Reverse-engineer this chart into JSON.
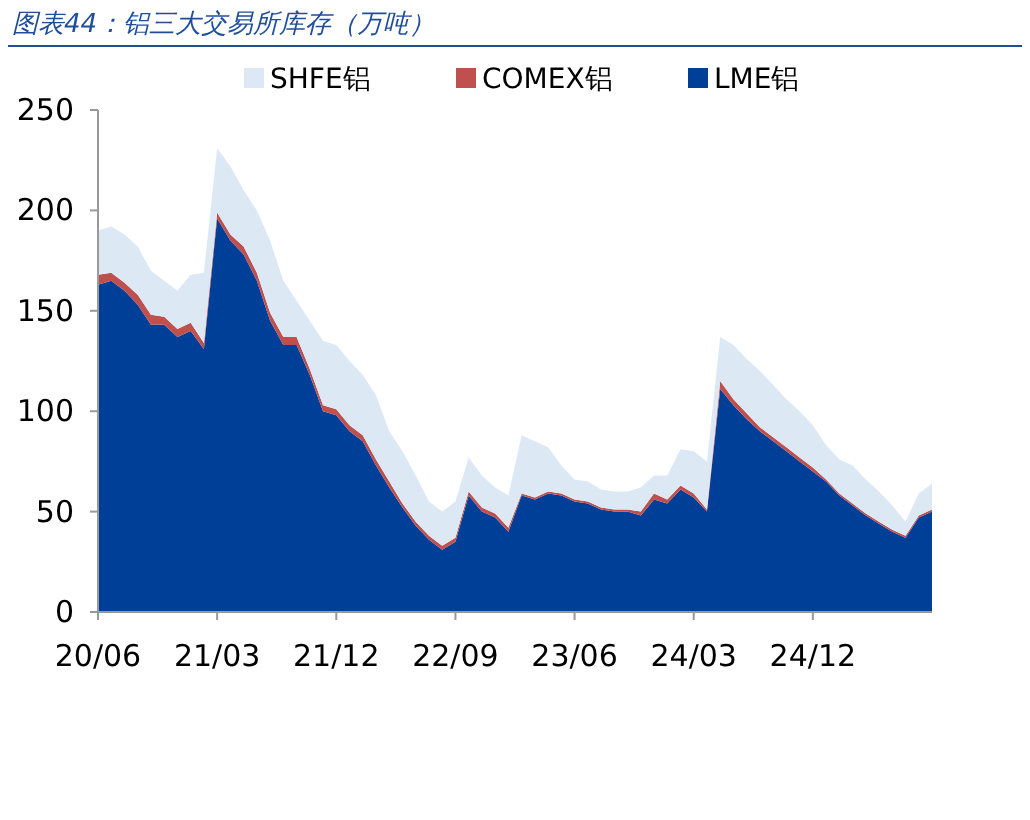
{
  "chart_data": {
    "type": "area",
    "stacked": true,
    "title": "图表44：铝三大交易所库存（万吨）",
    "legend": "top",
    "categories": [
      "20/06",
      null,
      null,
      null,
      null,
      null,
      null,
      null,
      null,
      "21/03",
      null,
      null,
      null,
      null,
      null,
      null,
      null,
      null,
      "21/12",
      null,
      null,
      null,
      null,
      null,
      null,
      null,
      null,
      "22/09",
      null,
      null,
      null,
      null,
      null,
      null,
      null,
      null,
      "23/06",
      null,
      null,
      null,
      null,
      null,
      null,
      null,
      null,
      "24/03",
      null,
      null,
      null,
      null,
      null,
      null,
      null,
      null,
      "24/12",
      null,
      null,
      null,
      null,
      null,
      null,
      null,
      null,
      null
    ],
    "series": [
      {
        "name": "LME铝",
        "color": "#003f98",
        "values": [
          163,
          165,
          160,
          153,
          143,
          143,
          137,
          140,
          131,
          196,
          185,
          178,
          165,
          145,
          133,
          133,
          118,
          100,
          98,
          90,
          85,
          73,
          62,
          52,
          43,
          36,
          31,
          35,
          58,
          50,
          47,
          40,
          58,
          56,
          59,
          58,
          55,
          54,
          51,
          50,
          50,
          48,
          56,
          54,
          61,
          57,
          50,
          111,
          103,
          96,
          90,
          85,
          80,
          75,
          70,
          65,
          58,
          53,
          48,
          44,
          40,
          37,
          47,
          50
        ]
      },
      {
        "name": "COMEX铝",
        "color": "#c0504d",
        "values": [
          5,
          4,
          4,
          5,
          5,
          4,
          4,
          4,
          3,
          3,
          3,
          4,
          4,
          4,
          4,
          4,
          3,
          3,
          3,
          3,
          3,
          3,
          3,
          2,
          2,
          2,
          2,
          2,
          2,
          2,
          2,
          2,
          1,
          1,
          1,
          1,
          1,
          1,
          1,
          1,
          1,
          2,
          3,
          2,
          2,
          2,
          1,
          4,
          3,
          3,
          2,
          2,
          2,
          2,
          2,
          1,
          1,
          1,
          1,
          1,
          1,
          1,
          1,
          1
        ]
      },
      {
        "name": "SHFE铝",
        "color": "#dde8f5",
        "values": [
          22,
          23,
          24,
          24,
          22,
          18,
          19,
          24,
          35,
          32,
          34,
          28,
          31,
          36,
          28,
          18,
          24,
          32,
          32,
          32,
          30,
          32,
          25,
          26,
          23,
          17,
          17,
          18,
          17,
          16,
          13,
          16,
          29,
          28,
          22,
          14,
          10,
          10,
          9,
          9,
          9,
          12,
          9,
          12,
          18,
          21,
          24,
          22,
          27,
          27,
          28,
          26,
          24,
          23,
          21,
          17,
          17,
          19,
          17,
          15,
          12,
          7,
          11,
          13
        ]
      }
    ],
    "ylim": [
      0,
      250
    ],
    "yticks": [
      0,
      50,
      100,
      150,
      200,
      250
    ]
  }
}
